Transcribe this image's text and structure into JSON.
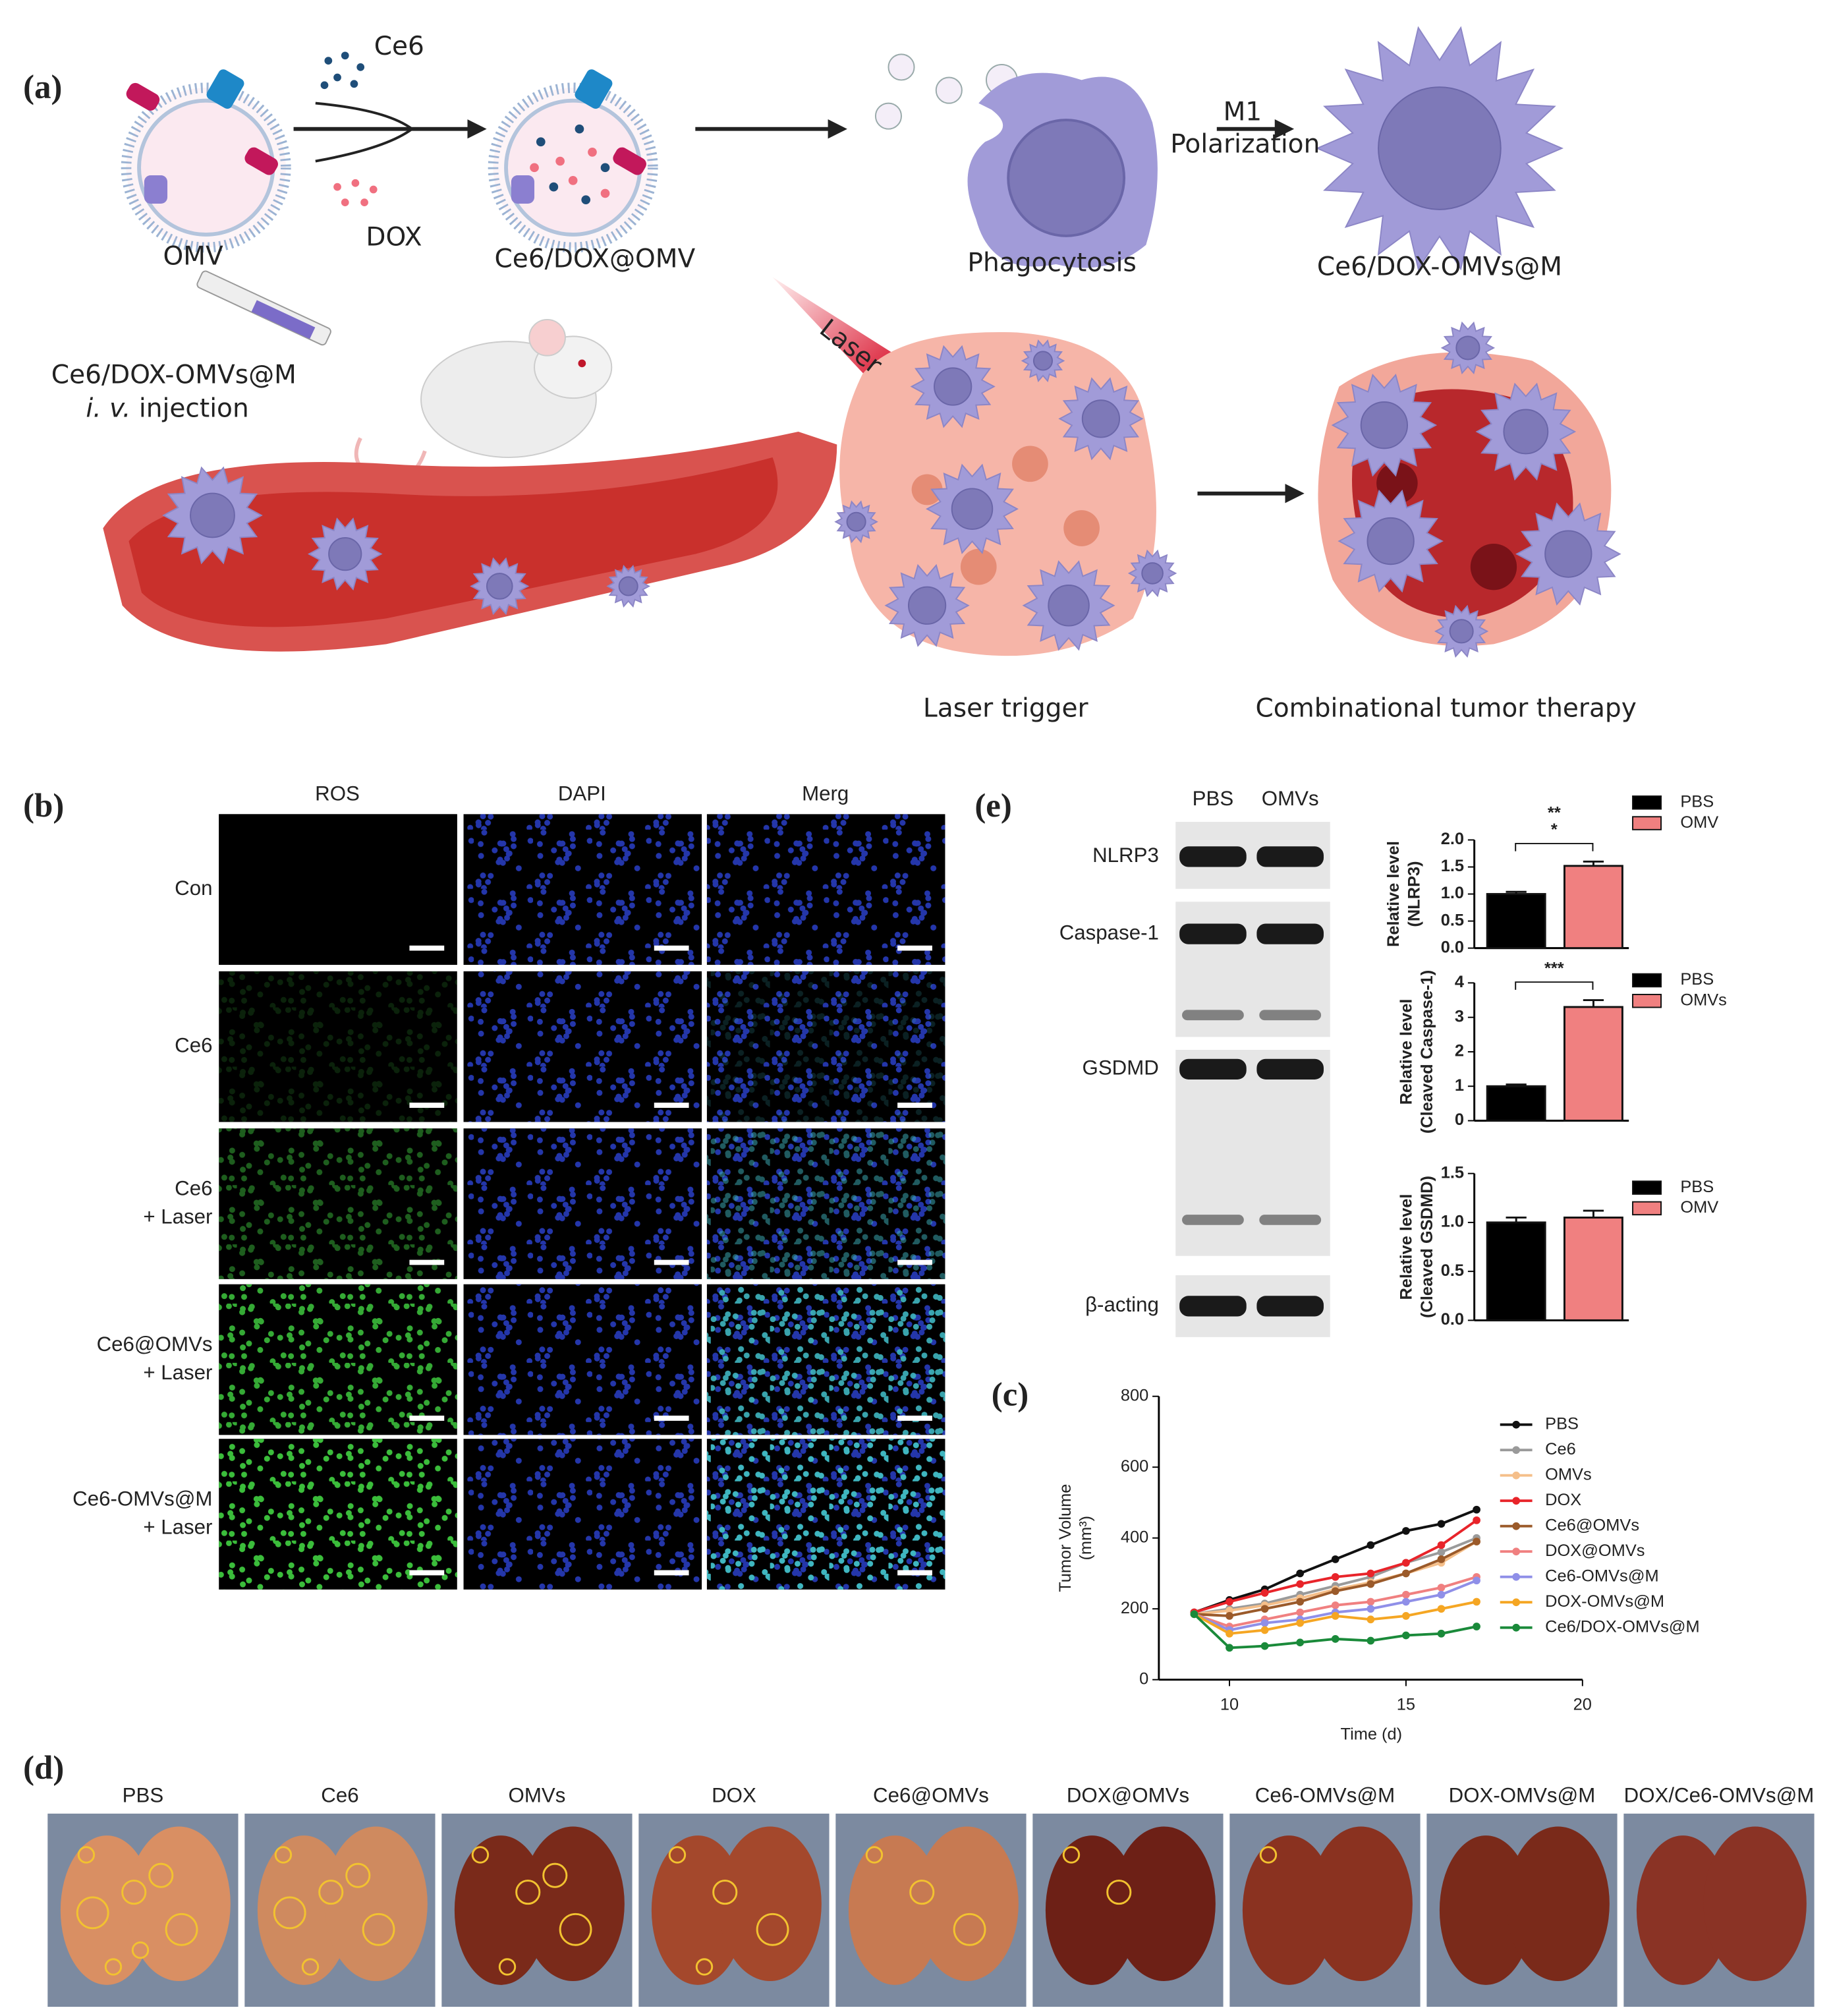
{
  "panel_labels": [
    "(a)",
    "(b)",
    "(c)",
    "(d)",
    "(e)"
  ],
  "panel_a": {
    "ce6": "Ce6",
    "dox": "DOX",
    "omv": "OMV",
    "loaded": "Ce6/DOX@OMV",
    "phagocytosis": "Phagocytosis",
    "m1": "M1",
    "polarization": "Polarization",
    "macrophage": "Ce6/DOX-OMVs@M",
    "injection_agent": "Ce6/DOX-OMVs@M",
    "injection_route": "i. v.",
    "injection": "injection",
    "laser": "Laser",
    "laser_trigger": "Laser trigger",
    "therapy": "Combinational tumor therapy"
  },
  "panel_b": {
    "columns": [
      "ROS",
      "DAPI",
      "Merg"
    ],
    "rows": [
      [
        "Con"
      ],
      [
        "Ce6"
      ],
      [
        "Ce6",
        "+ Laser"
      ],
      [
        "Ce6@OMVs",
        "+ Laser"
      ],
      [
        "Ce6-OMVs@M",
        "+ Laser"
      ]
    ]
  },
  "panel_d": {
    "groups": [
      "PBS",
      "Ce6",
      "OMVs",
      "DOX",
      "Ce6@OMVs",
      "DOX@OMVs",
      "Ce6-OMVs@M",
      "DOX-OMVs@M",
      "DOX/Ce6-OMVs@M"
    ]
  },
  "panel_e": {
    "lanes": [
      "PBS",
      "OMVs"
    ],
    "proteins": [
      "NLRP3",
      "Caspase-1",
      "GSDMD",
      "β-acting"
    ]
  },
  "chart_data": [
    {
      "type": "bar",
      "ylabel": [
        "Relative level",
        "(NLRP3)"
      ],
      "categories": [
        "PBS",
        "OMV"
      ],
      "values": [
        1.0,
        1.52
      ],
      "errors": [
        0.04,
        0.08
      ],
      "colors": [
        "#000000",
        "#f08080"
      ],
      "ylim": [
        0,
        2
      ],
      "yticks": [
        {
          "value": 0,
          "label": "0.0"
        },
        {
          "value": 0.5,
          "label": "0.5"
        },
        {
          "value": 1,
          "label": "1.0"
        },
        {
          "value": 1.5,
          "label": "1.5"
        },
        {
          "value": 2,
          "label": "2.0"
        }
      ],
      "significance": [
        "**",
        "*"
      ]
    },
    {
      "type": "bar",
      "ylabel": [
        "Relative level",
        "(Cleaved Caspase-1)"
      ],
      "categories": [
        "PBS",
        "OMVs"
      ],
      "values": [
        1.0,
        3.3
      ],
      "errors": [
        0.05,
        0.2
      ],
      "colors": [
        "#000000",
        "#f08080"
      ],
      "ylim": [
        0,
        4
      ],
      "yticks": [
        0,
        1,
        2,
        3,
        4
      ],
      "significance": [
        "***"
      ]
    },
    {
      "type": "bar",
      "ylabel": [
        "Relative level",
        "(Cleaved  GSDMD)"
      ],
      "categories": [
        "PBS",
        "OMV"
      ],
      "values": [
        1.0,
        1.05
      ],
      "errors": [
        0.05,
        0.07
      ],
      "colors": [
        "#000000",
        "#f08080"
      ],
      "ylim": [
        0,
        1.5
      ],
      "yticks": [
        {
          "value": 0,
          "label": "0.0"
        },
        {
          "value": 0.5,
          "label": "0.5"
        },
        {
          "value": 1,
          "label": "1.0"
        },
        {
          "value": 1.5,
          "label": "1.5"
        }
      ]
    },
    {
      "type": "line",
      "xlabel": "Time (d)",
      "ylabel": [
        "Tumor Volume",
        "(mm³)"
      ],
      "x": [
        9,
        10,
        11,
        12,
        13,
        14,
        15,
        16,
        17
      ],
      "xlim": [
        8,
        20
      ],
      "xticks": [
        10,
        15,
        20
      ],
      "ylim": [
        0,
        800
      ],
      "yticks": [
        0,
        200,
        400,
        600,
        800
      ],
      "series": [
        {
          "name": "PBS",
          "color": "#111111",
          "values": [
            190,
            225,
            255,
            300,
            340,
            380,
            420,
            440,
            480
          ]
        },
        {
          "name": "Ce6",
          "color": "#9a9a9a",
          "values": [
            185,
            200,
            215,
            240,
            265,
            290,
            330,
            360,
            400
          ]
        },
        {
          "name": "OMVs",
          "color": "#f5bf8a",
          "values": [
            185,
            195,
            210,
            230,
            255,
            275,
            300,
            330,
            390
          ]
        },
        {
          "name": "DOX",
          "color": "#e8242a",
          "values": [
            190,
            220,
            245,
            270,
            290,
            300,
            330,
            380,
            450
          ]
        },
        {
          "name": "Ce6@OMVs",
          "color": "#9b5a2a",
          "values": [
            185,
            180,
            200,
            220,
            250,
            270,
            300,
            340,
            390
          ]
        },
        {
          "name": "DOX@OMVs",
          "color": "#f08080",
          "values": [
            185,
            150,
            170,
            190,
            210,
            220,
            240,
            260,
            290
          ]
        },
        {
          "name": "Ce6-OMVs@M",
          "color": "#8f8fe8",
          "values": [
            185,
            140,
            160,
            170,
            190,
            200,
            220,
            240,
            280
          ]
        },
        {
          "name": "DOX-OMVs@M",
          "color": "#f5a623",
          "values": [
            185,
            130,
            140,
            160,
            180,
            170,
            180,
            200,
            220
          ]
        },
        {
          "name": "Ce6/DOX-OMVs@M",
          "color": "#1a8a3a",
          "values": [
            185,
            90,
            95,
            105,
            115,
            110,
            125,
            130,
            150
          ]
        }
      ]
    }
  ]
}
